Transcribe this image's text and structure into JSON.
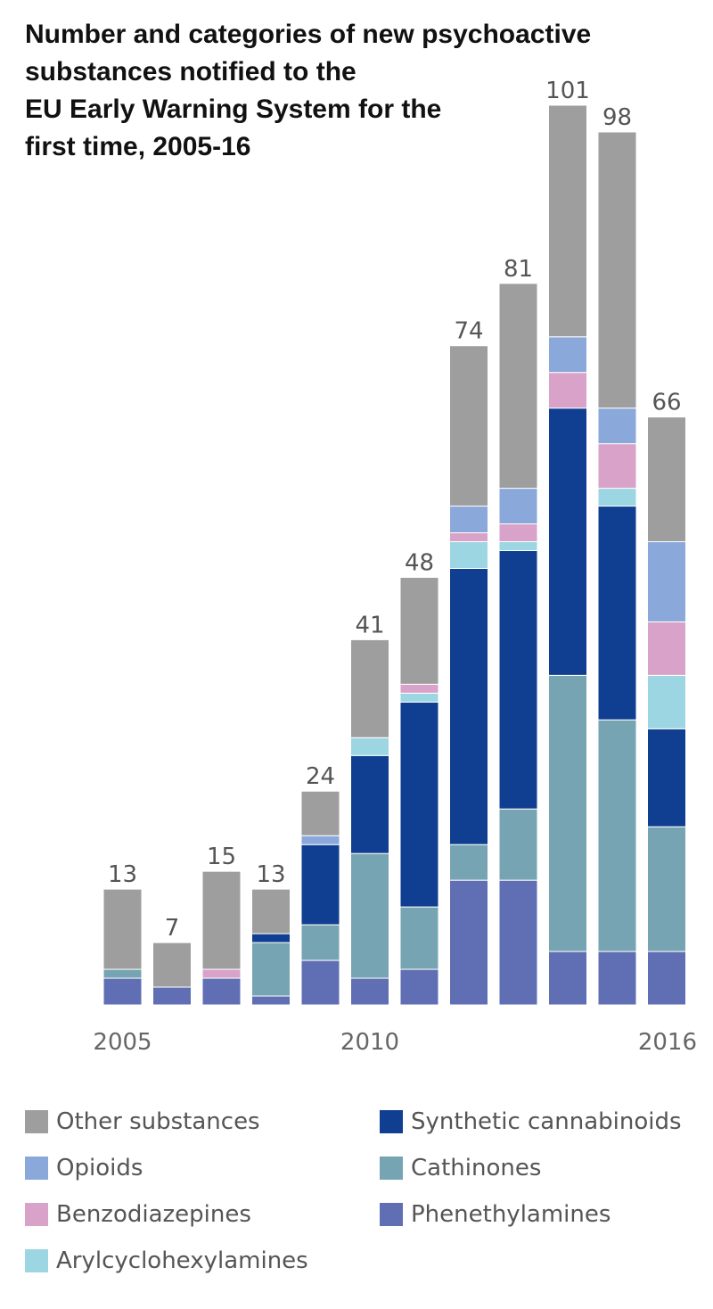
{
  "chart_data": {
    "type": "bar",
    "stacked": true,
    "title_lines": [
      "Number and categories of new psychoactive",
      "substances notified to the",
      "EU Early Warning System for the",
      "first time, 2005-16"
    ],
    "categories": [
      2005,
      2006,
      2007,
      2008,
      2009,
      2010,
      2011,
      2012,
      2013,
      2014,
      2015,
      2016
    ],
    "x_tick_labels": [
      {
        "category": 2005,
        "label": "2005"
      },
      {
        "category": 2010,
        "label": "2010"
      },
      {
        "category": 2016,
        "label": "2016"
      }
    ],
    "totals": [
      13,
      7,
      15,
      13,
      24,
      41,
      48,
      74,
      81,
      101,
      98,
      66
    ],
    "total_labels": [
      "13",
      "7",
      "15",
      "13",
      "24",
      "41",
      "48",
      "74",
      "81",
      "101",
      "98",
      "66"
    ],
    "ylim": [
      0,
      101
    ],
    "grid": false,
    "legend_position": "bottom",
    "series": [
      {
        "name": "Phenethylamines",
        "color": "#606fb3",
        "values": [
          3,
          2,
          3,
          1,
          5,
          3,
          4,
          14,
          14,
          6,
          6,
          6
        ]
      },
      {
        "name": "Cathinones",
        "color": "#76a4b2",
        "values": [
          1,
          0,
          0,
          6,
          4,
          14,
          7,
          4,
          8,
          31,
          26,
          14
        ]
      },
      {
        "name": "Synthetic cannabinoids",
        "color": "#103f91",
        "values": [
          0,
          0,
          0,
          1,
          9,
          11,
          23,
          31,
          29,
          30,
          24,
          11
        ]
      },
      {
        "name": "Arylcyclohexylamines",
        "color": "#9dd6e3",
        "values": [
          0,
          0,
          0,
          0,
          0,
          2,
          1,
          3,
          1,
          0,
          2,
          6
        ]
      },
      {
        "name": "Benzodiazepines",
        "color": "#d9a2c8",
        "values": [
          0,
          0,
          1,
          0,
          0,
          0,
          1,
          1,
          2,
          4,
          5,
          6
        ]
      },
      {
        "name": "Opioids",
        "color": "#8aa8da",
        "values": [
          0,
          0,
          0,
          0,
          1,
          0,
          0,
          3,
          4,
          4,
          4,
          9
        ]
      },
      {
        "name": "Other substances",
        "color": "#9e9e9e",
        "values": [
          9,
          5,
          11,
          5,
          5,
          11,
          12,
          18,
          23,
          26,
          31,
          14
        ]
      }
    ],
    "legend_entries": [
      {
        "name": "Other substances",
        "color": "#9e9e9e"
      },
      {
        "name": "Synthetic cannabinoids",
        "color": "#103f91"
      },
      {
        "name": "Opioids",
        "color": "#8aa8da"
      },
      {
        "name": "Cathinones",
        "color": "#76a4b2"
      },
      {
        "name": "Benzodiazepines",
        "color": "#d9a2c8"
      },
      {
        "name": "Phenethylamines",
        "color": "#606fb3"
      },
      {
        "name": "Arylcyclohexylamines",
        "color": "#9dd6e3"
      }
    ]
  }
}
